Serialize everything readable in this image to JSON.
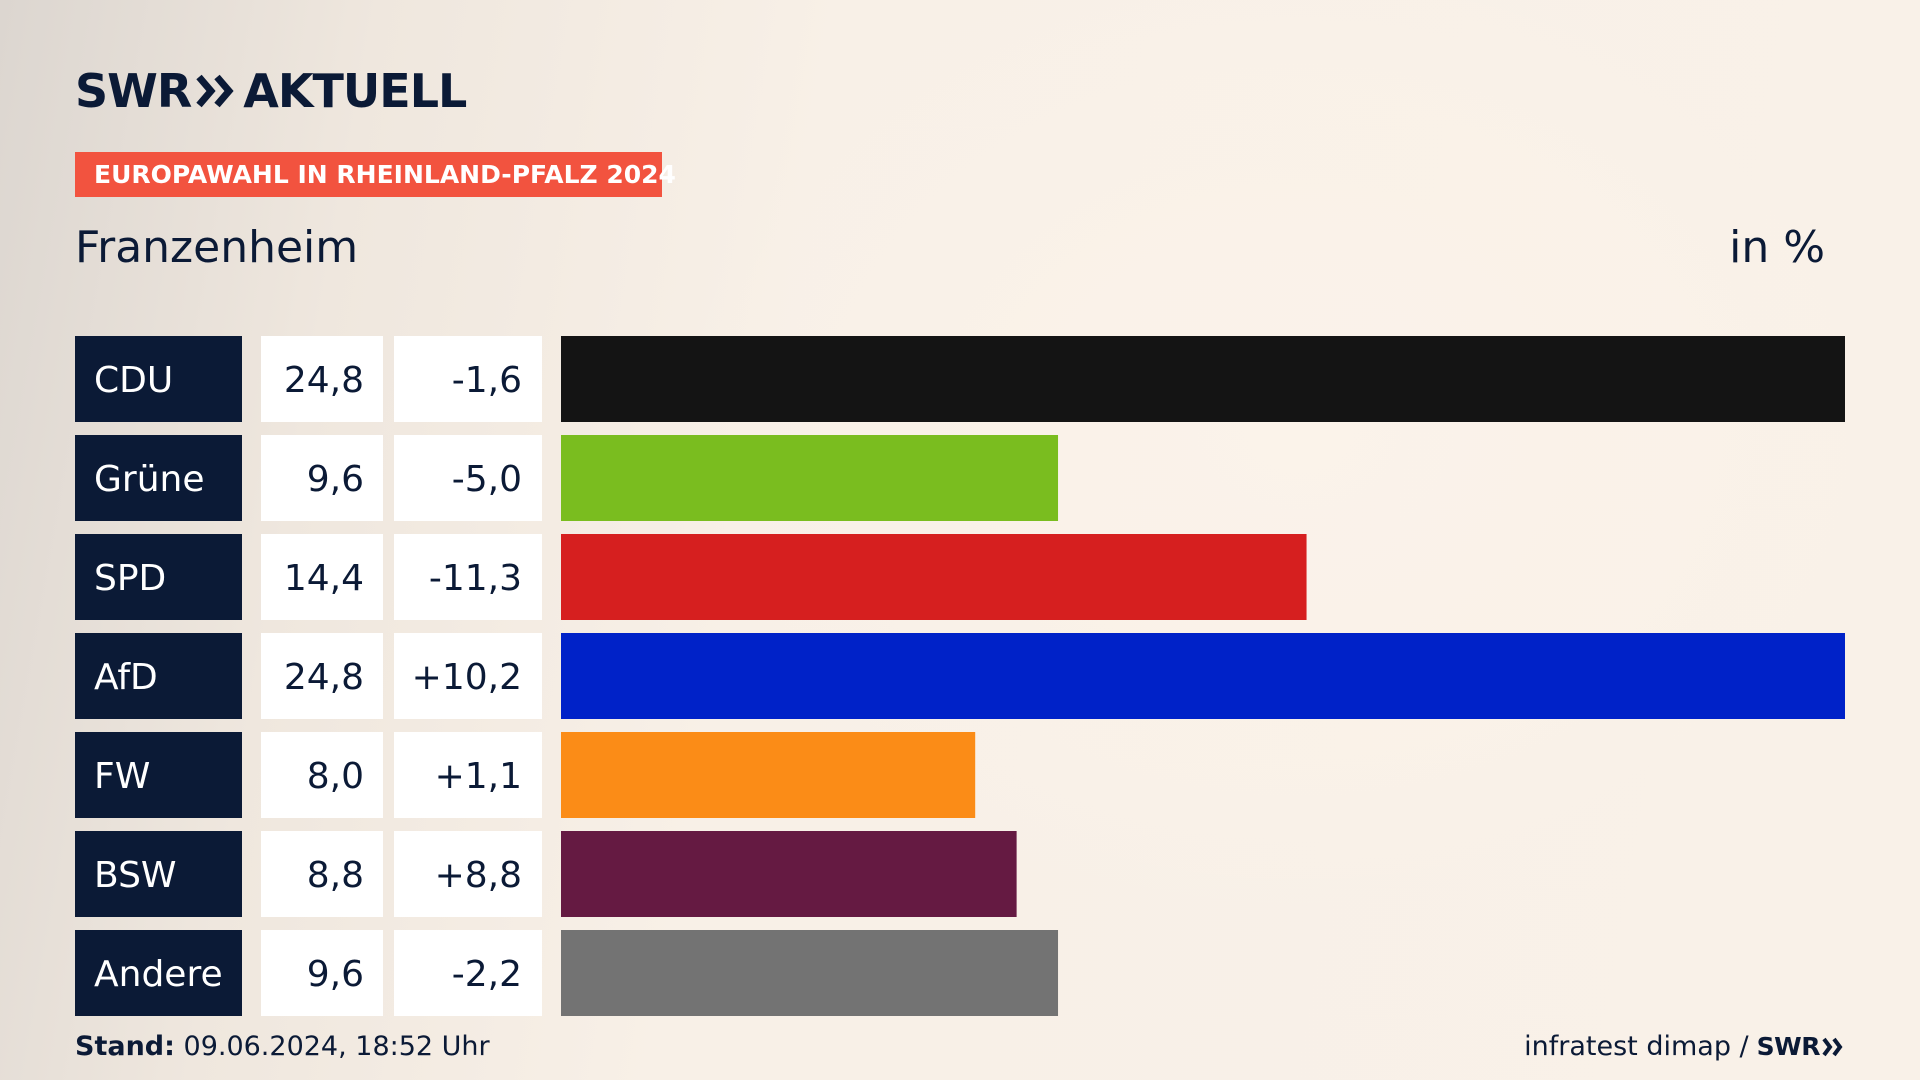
{
  "brand": {
    "name": "SWR",
    "product": "AKTUELL"
  },
  "banner": "EUROPAWAHL IN RHEINLAND-PFALZ 2024",
  "place": "Franzenheim",
  "unit": "in %",
  "footer": {
    "stand_label": "Stand:",
    "stand_value": "09.06.2024, 18:52 Uhr",
    "source": "infratest dimap /",
    "source_logo": "SWR"
  },
  "chart_data": {
    "type": "bar",
    "orientation": "horizontal",
    "categories": [
      "CDU",
      "Grüne",
      "SPD",
      "AfD",
      "FW",
      "BSW",
      "Andere"
    ],
    "series": [
      {
        "values": [
          24.8,
          9.6,
          14.4,
          24.8,
          8.0,
          8.8,
          9.6
        ]
      }
    ],
    "value_labels": [
      "24,8",
      "9,6",
      "14,4",
      "24,8",
      "8,0",
      "8,8",
      "9,6"
    ],
    "change_values": [
      -1.6,
      -5.0,
      -11.3,
      10.2,
      1.1,
      8.8,
      -2.2
    ],
    "change_labels": [
      "-1,6",
      "-5,0",
      "-11,3",
      "+10,2",
      "+1,1",
      "+8,8",
      "-2,2"
    ],
    "colors": [
      "#141414",
      "#7abd1f",
      "#d61f1f",
      "#0022c8",
      "#fb8c17",
      "#651a42",
      "#737373"
    ],
    "xlim": [
      0,
      24.8
    ],
    "grid": false,
    "legend": "none"
  }
}
